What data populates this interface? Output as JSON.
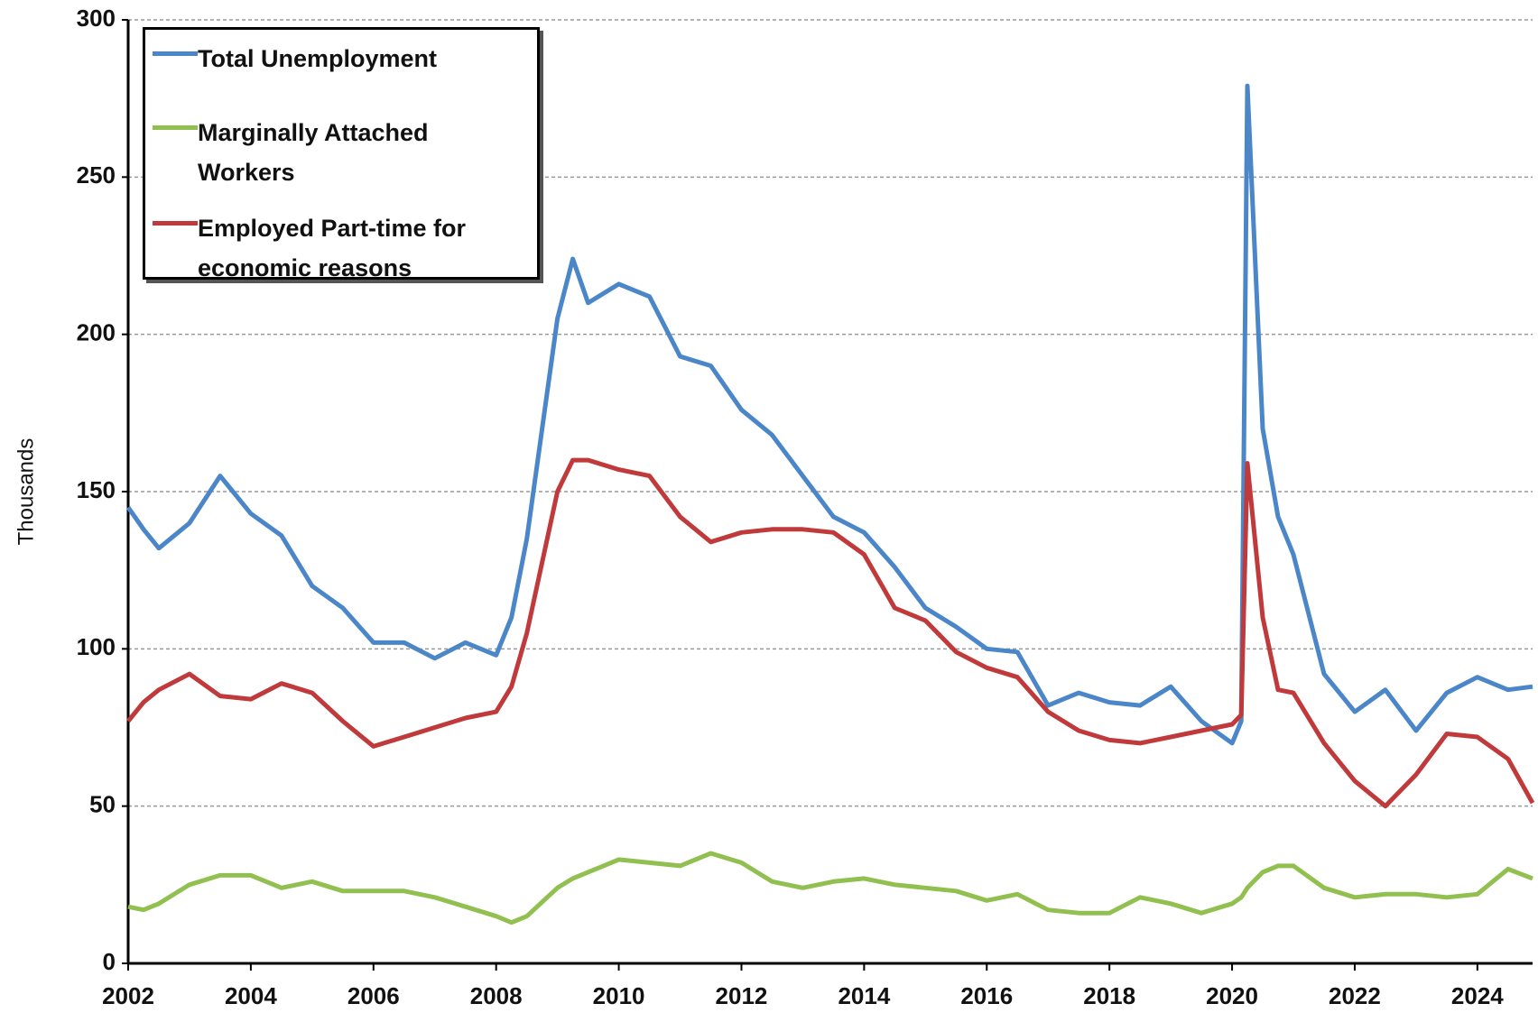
{
  "chart_data": {
    "type": "line",
    "y_label": "Thousands",
    "x": [
      2002,
      2002.25,
      2002.5,
      2003,
      2003.5,
      2004,
      2004.5,
      2005,
      2005.5,
      2006,
      2006.5,
      2007,
      2007.5,
      2008,
      2008.25,
      2008.5,
      2009,
      2009.25,
      2009.5,
      2010,
      2010.5,
      2011,
      2011.5,
      2012,
      2012.5,
      2013,
      2013.5,
      2014,
      2014.5,
      2015,
      2015.5,
      2016,
      2016.5,
      2017,
      2017.5,
      2018,
      2018.5,
      2019,
      2019.5,
      2020,
      2020.15,
      2020.25,
      2020.5,
      2020.75,
      2021,
      2021.5,
      2022,
      2022.5,
      2023,
      2023.5,
      2024,
      2024.5,
      2024.9
    ],
    "series": [
      {
        "name": "Total Unemployment",
        "color": "#4a86c8",
        "values": [
          145,
          138,
          132,
          140,
          155,
          143,
          136,
          120,
          113,
          102,
          102,
          97,
          102,
          98,
          110,
          135,
          205,
          224,
          210,
          216,
          212,
          193,
          190,
          176,
          168,
          155,
          142,
          137,
          126,
          113,
          107,
          100,
          99,
          82,
          86,
          83,
          82,
          88,
          77,
          70,
          77,
          279,
          170,
          142,
          130,
          92,
          80,
          87,
          74,
          86,
          91,
          87,
          88
        ]
      },
      {
        "name": "Marginally Attached Workers",
        "color": "#92c050",
        "values": [
          18,
          17,
          19,
          25,
          28,
          28,
          24,
          26,
          23,
          23,
          23,
          21,
          18,
          15,
          13,
          15,
          24,
          27,
          29,
          33,
          32,
          31,
          35,
          32,
          26,
          24,
          26,
          27,
          25,
          24,
          23,
          20,
          22,
          17,
          16,
          16,
          21,
          19,
          16,
          19,
          21,
          24,
          29,
          31,
          31,
          24,
          21,
          22,
          22,
          21,
          22,
          30,
          27
        ]
      },
      {
        "name": "Employed Part-time for economic reasons",
        "color": "#c0393b",
        "values": [
          77,
          83,
          87,
          92,
          85,
          84,
          89,
          86,
          77,
          69,
          72,
          75,
          78,
          80,
          88,
          105,
          150,
          160,
          160,
          157,
          155,
          142,
          134,
          137,
          138,
          138,
          137,
          130,
          113,
          109,
          99,
          94,
          91,
          80,
          74,
          71,
          70,
          72,
          74,
          76,
          79,
          159,
          110,
          87,
          86,
          70,
          58,
          50,
          60,
          73,
          72,
          65,
          51
        ]
      }
    ],
    "xlim": [
      2002,
      2024.9
    ],
    "xticks": [
      2002,
      2004,
      2006,
      2008,
      2010,
      2012,
      2014,
      2016,
      2018,
      2020,
      2022,
      2024
    ],
    "ylim": [
      0,
      300
    ],
    "yticks": [
      0,
      50,
      100,
      150,
      200,
      250,
      300
    ],
    "grid": true
  }
}
